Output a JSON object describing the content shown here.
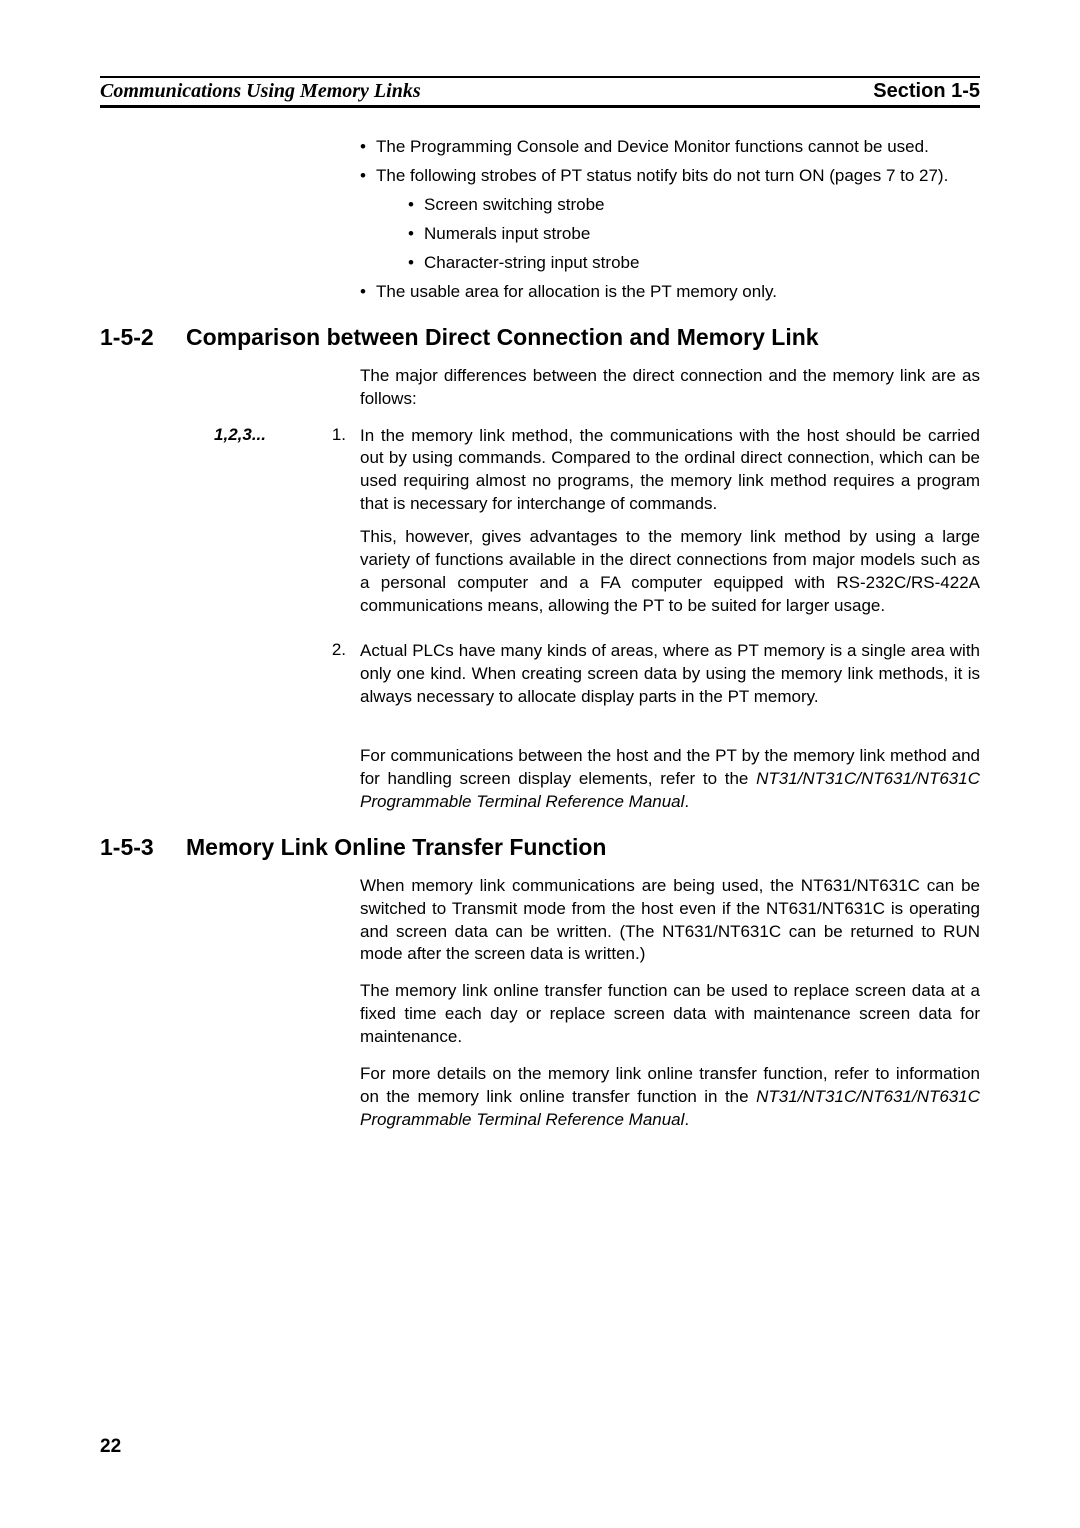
{
  "header": {
    "left": "Communications Using Memory Links",
    "right": "Section 1-5"
  },
  "top_bullets": {
    "items": [
      {
        "text": "The Programming Console and Device Monitor functions cannot be used.",
        "sub": []
      },
      {
        "text": "The following strobes of PT status notify bits do not turn ON (pages 7 to 27).",
        "sub": [
          "Screen switching strobe",
          "Numerals input strobe",
          "Character-string input strobe"
        ]
      },
      {
        "text": "The usable area for allocation is the PT memory only.",
        "sub": []
      }
    ]
  },
  "section_1_5_2": {
    "number": "1-5-2",
    "title": "Comparison between Direct Connection and Memory Link",
    "intro": "The major differences between the direct connection and the memory link are as follows:",
    "list_label": "1,2,3...",
    "items": [
      {
        "marker": "1.",
        "paras": [
          "In the memory link method, the communications with the host should be carried out by using commands. Compared to the ordinal direct connection, which can be used requiring almost no programs, the memory link method requires a program that is necessary for interchange of commands.",
          " This, however, gives advantages to the memory link method by using a large variety of functions available in the direct connections from major models such as a personal computer and a FA computer equipped with RS-232C/RS-422A communications means, allowing the PT to be suited for larger usage."
        ]
      },
      {
        "marker": "2.",
        "paras": [
          "Actual PLCs have many kinds of areas, where as PT memory is a single area with only one kind. When creating screen data by using the memory link methods, it is always necessary to allocate display parts in the PT memory."
        ]
      }
    ],
    "footer_pre": "For communications between the host and the PT by the memory link method and for handling screen display elements, refer to the ",
    "footer_italic": "NT31/NT31C/NT631/NT631C Programmable Terminal Reference Manual",
    "footer_post": "."
  },
  "section_1_5_3": {
    "number": "1-5-3",
    "title": "Memory Link Online Transfer Function",
    "paras": [
      "When memory link communications are being used, the NT631/NT631C can be switched to Transmit mode from the host even if the NT631/NT631C is operating and screen data can be written. (The NT631/NT631C can be returned to RUN mode after the screen data is written.)",
      "The memory link online transfer function can be used to replace screen data at a fixed time each day or replace screen data with maintenance screen data for maintenance."
    ],
    "footer_pre": "For more details on the memory link online transfer function, refer to information on the memory link online transfer function in the ",
    "footer_italic": "NT31/NT31C/NT631/NT631C Programmable Terminal Reference Manual",
    "footer_post": "."
  },
  "page_number": "22"
}
